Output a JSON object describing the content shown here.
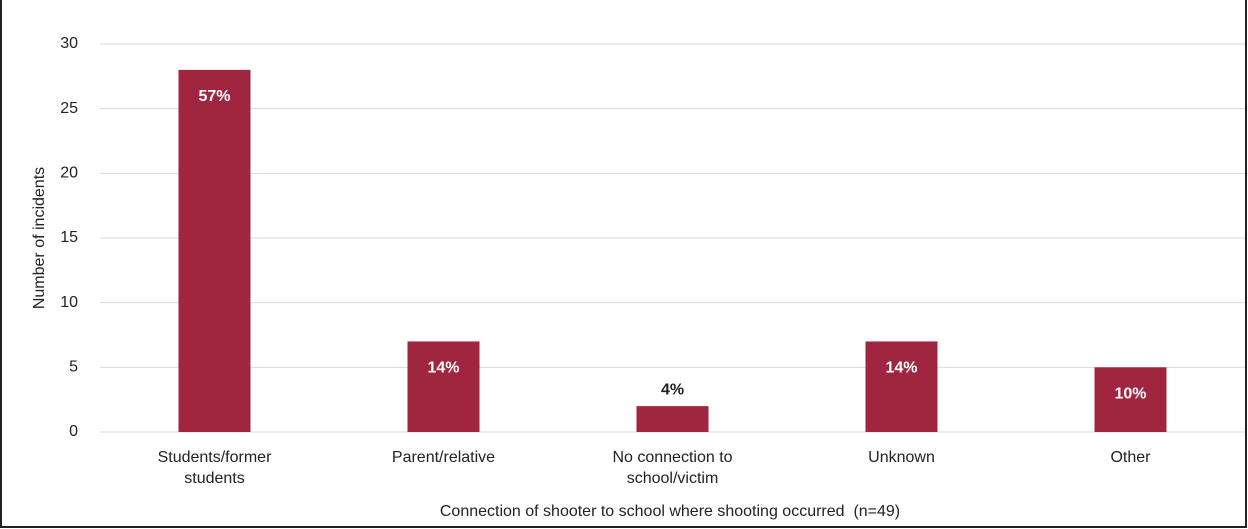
{
  "chart_data": {
    "type": "bar",
    "x_label": "Connection of shooter to school where shooting occurred  (n=49)",
    "y_label": "Number of incidents",
    "categories": [
      [
        "Students/former",
        "students"
      ],
      [
        "Parent/relative"
      ],
      [
        "No connection to",
        "school/victim"
      ],
      [
        "Unknown"
      ],
      [
        "Other"
      ]
    ],
    "values": [
      28,
      7,
      2,
      7,
      5
    ],
    "percent_labels": [
      "57%",
      "14%",
      "4%",
      "14%",
      "10%"
    ],
    "color": "#a0253f",
    "ylim": [
      0,
      30
    ],
    "yticks": [
      0,
      5,
      10,
      15,
      20,
      25,
      30
    ],
    "grid": true
  }
}
